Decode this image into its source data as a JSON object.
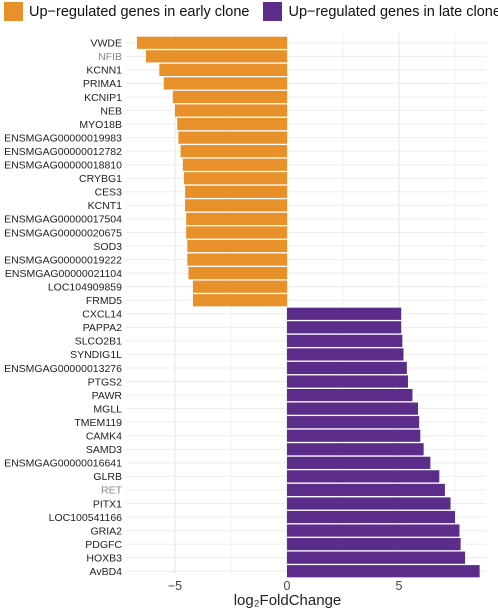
{
  "chart_data": {
    "type": "bar",
    "orientation": "horizontal",
    "xlabel": "log₂FoldChange",
    "xlim": [
      -8.5,
      8.8
    ],
    "xticks": [
      -5,
      0,
      5
    ],
    "xtick_labels": [
      "−5",
      "0",
      "5"
    ],
    "grid": true,
    "legend": {
      "placement": "top",
      "entries": [
        {
          "label": "Up−regulated genes in early clone",
          "color": "#E8902A"
        },
        {
          "label": "Up−regulated genes in late clone",
          "color": "#5B2C8A"
        }
      ]
    },
    "colors": {
      "early": "#E8902A",
      "late": "#5B2C8A",
      "gray_label": "#888888"
    },
    "genes": [
      {
        "name": "VWDE",
        "value": -6.7,
        "group": "early"
      },
      {
        "name": "NFIB",
        "value": -6.3,
        "group": "early",
        "label_color": "gray"
      },
      {
        "name": "KCNN1",
        "value": -5.7,
        "group": "early"
      },
      {
        "name": "PRIMA1",
        "value": -5.5,
        "group": "early"
      },
      {
        "name": "KCNIP1",
        "value": -5.1,
        "group": "early"
      },
      {
        "name": "NEB",
        "value": -5.0,
        "group": "early"
      },
      {
        "name": "MYO18B",
        "value": -4.9,
        "group": "early"
      },
      {
        "name": "ENSMGAG00000019983",
        "value": -4.85,
        "group": "early"
      },
      {
        "name": "ENSMGAG00000012782",
        "value": -4.75,
        "group": "early"
      },
      {
        "name": "ENSMGAG00000018810",
        "value": -4.65,
        "group": "early"
      },
      {
        "name": "CRYBG1",
        "value": -4.6,
        "group": "early"
      },
      {
        "name": "CES3",
        "value": -4.55,
        "group": "early"
      },
      {
        "name": "KCNT1",
        "value": -4.55,
        "group": "early"
      },
      {
        "name": "ENSMGAG00000017504",
        "value": -4.5,
        "group": "early"
      },
      {
        "name": "ENSMGAG00000020675",
        "value": -4.5,
        "group": "early"
      },
      {
        "name": "SOD3",
        "value": -4.45,
        "group": "early"
      },
      {
        "name": "ENSMGAG00000019222",
        "value": -4.45,
        "group": "early"
      },
      {
        "name": "ENSMGAG00000021104",
        "value": -4.4,
        "group": "early"
      },
      {
        "name": "LOC104909859",
        "value": -4.2,
        "group": "early"
      },
      {
        "name": "FRMD5",
        "value": -4.2,
        "group": "early"
      },
      {
        "name": "CXCL14",
        "value": 5.1,
        "group": "late"
      },
      {
        "name": "PAPPA2",
        "value": 5.1,
        "group": "late"
      },
      {
        "name": "SLCO2B1",
        "value": 5.15,
        "group": "late"
      },
      {
        "name": "SYNDIG1L",
        "value": 5.2,
        "group": "late"
      },
      {
        "name": "ENSMGAG00000013276",
        "value": 5.35,
        "group": "late"
      },
      {
        "name": "PTGS2",
        "value": 5.4,
        "group": "late"
      },
      {
        "name": "PAWR",
        "value": 5.6,
        "group": "late"
      },
      {
        "name": "MGLL",
        "value": 5.85,
        "group": "late"
      },
      {
        "name": "TMEM119",
        "value": 5.9,
        "group": "late"
      },
      {
        "name": "CAMK4",
        "value": 5.95,
        "group": "late"
      },
      {
        "name": "SAMD3",
        "value": 6.1,
        "group": "late"
      },
      {
        "name": "ENSMGAG00000016641",
        "value": 6.4,
        "group": "late"
      },
      {
        "name": "GLRB",
        "value": 6.8,
        "group": "late"
      },
      {
        "name": "RET",
        "value": 7.05,
        "group": "late",
        "label_color": "gray"
      },
      {
        "name": "PITX1",
        "value": 7.3,
        "group": "late"
      },
      {
        "name": "LOC100541166",
        "value": 7.5,
        "group": "late"
      },
      {
        "name": "GRIA2",
        "value": 7.7,
        "group": "late"
      },
      {
        "name": "PDGFC",
        "value": 7.75,
        "group": "late"
      },
      {
        "name": "HOXB3",
        "value": 7.95,
        "group": "late"
      },
      {
        "name": "AvBD4",
        "value": 8.6,
        "group": "late"
      }
    ]
  }
}
